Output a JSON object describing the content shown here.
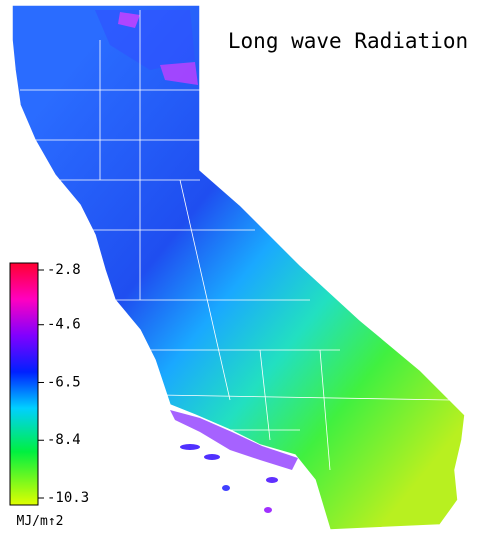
{
  "title": "Long wave Radiation",
  "colorbar": {
    "lim": [
      -2.8,
      -10.3
    ],
    "ticks": [
      -2.8,
      -4.6,
      -6.5,
      -8.4,
      -10.3
    ],
    "unit": "MJ/m↑2"
  }
}
